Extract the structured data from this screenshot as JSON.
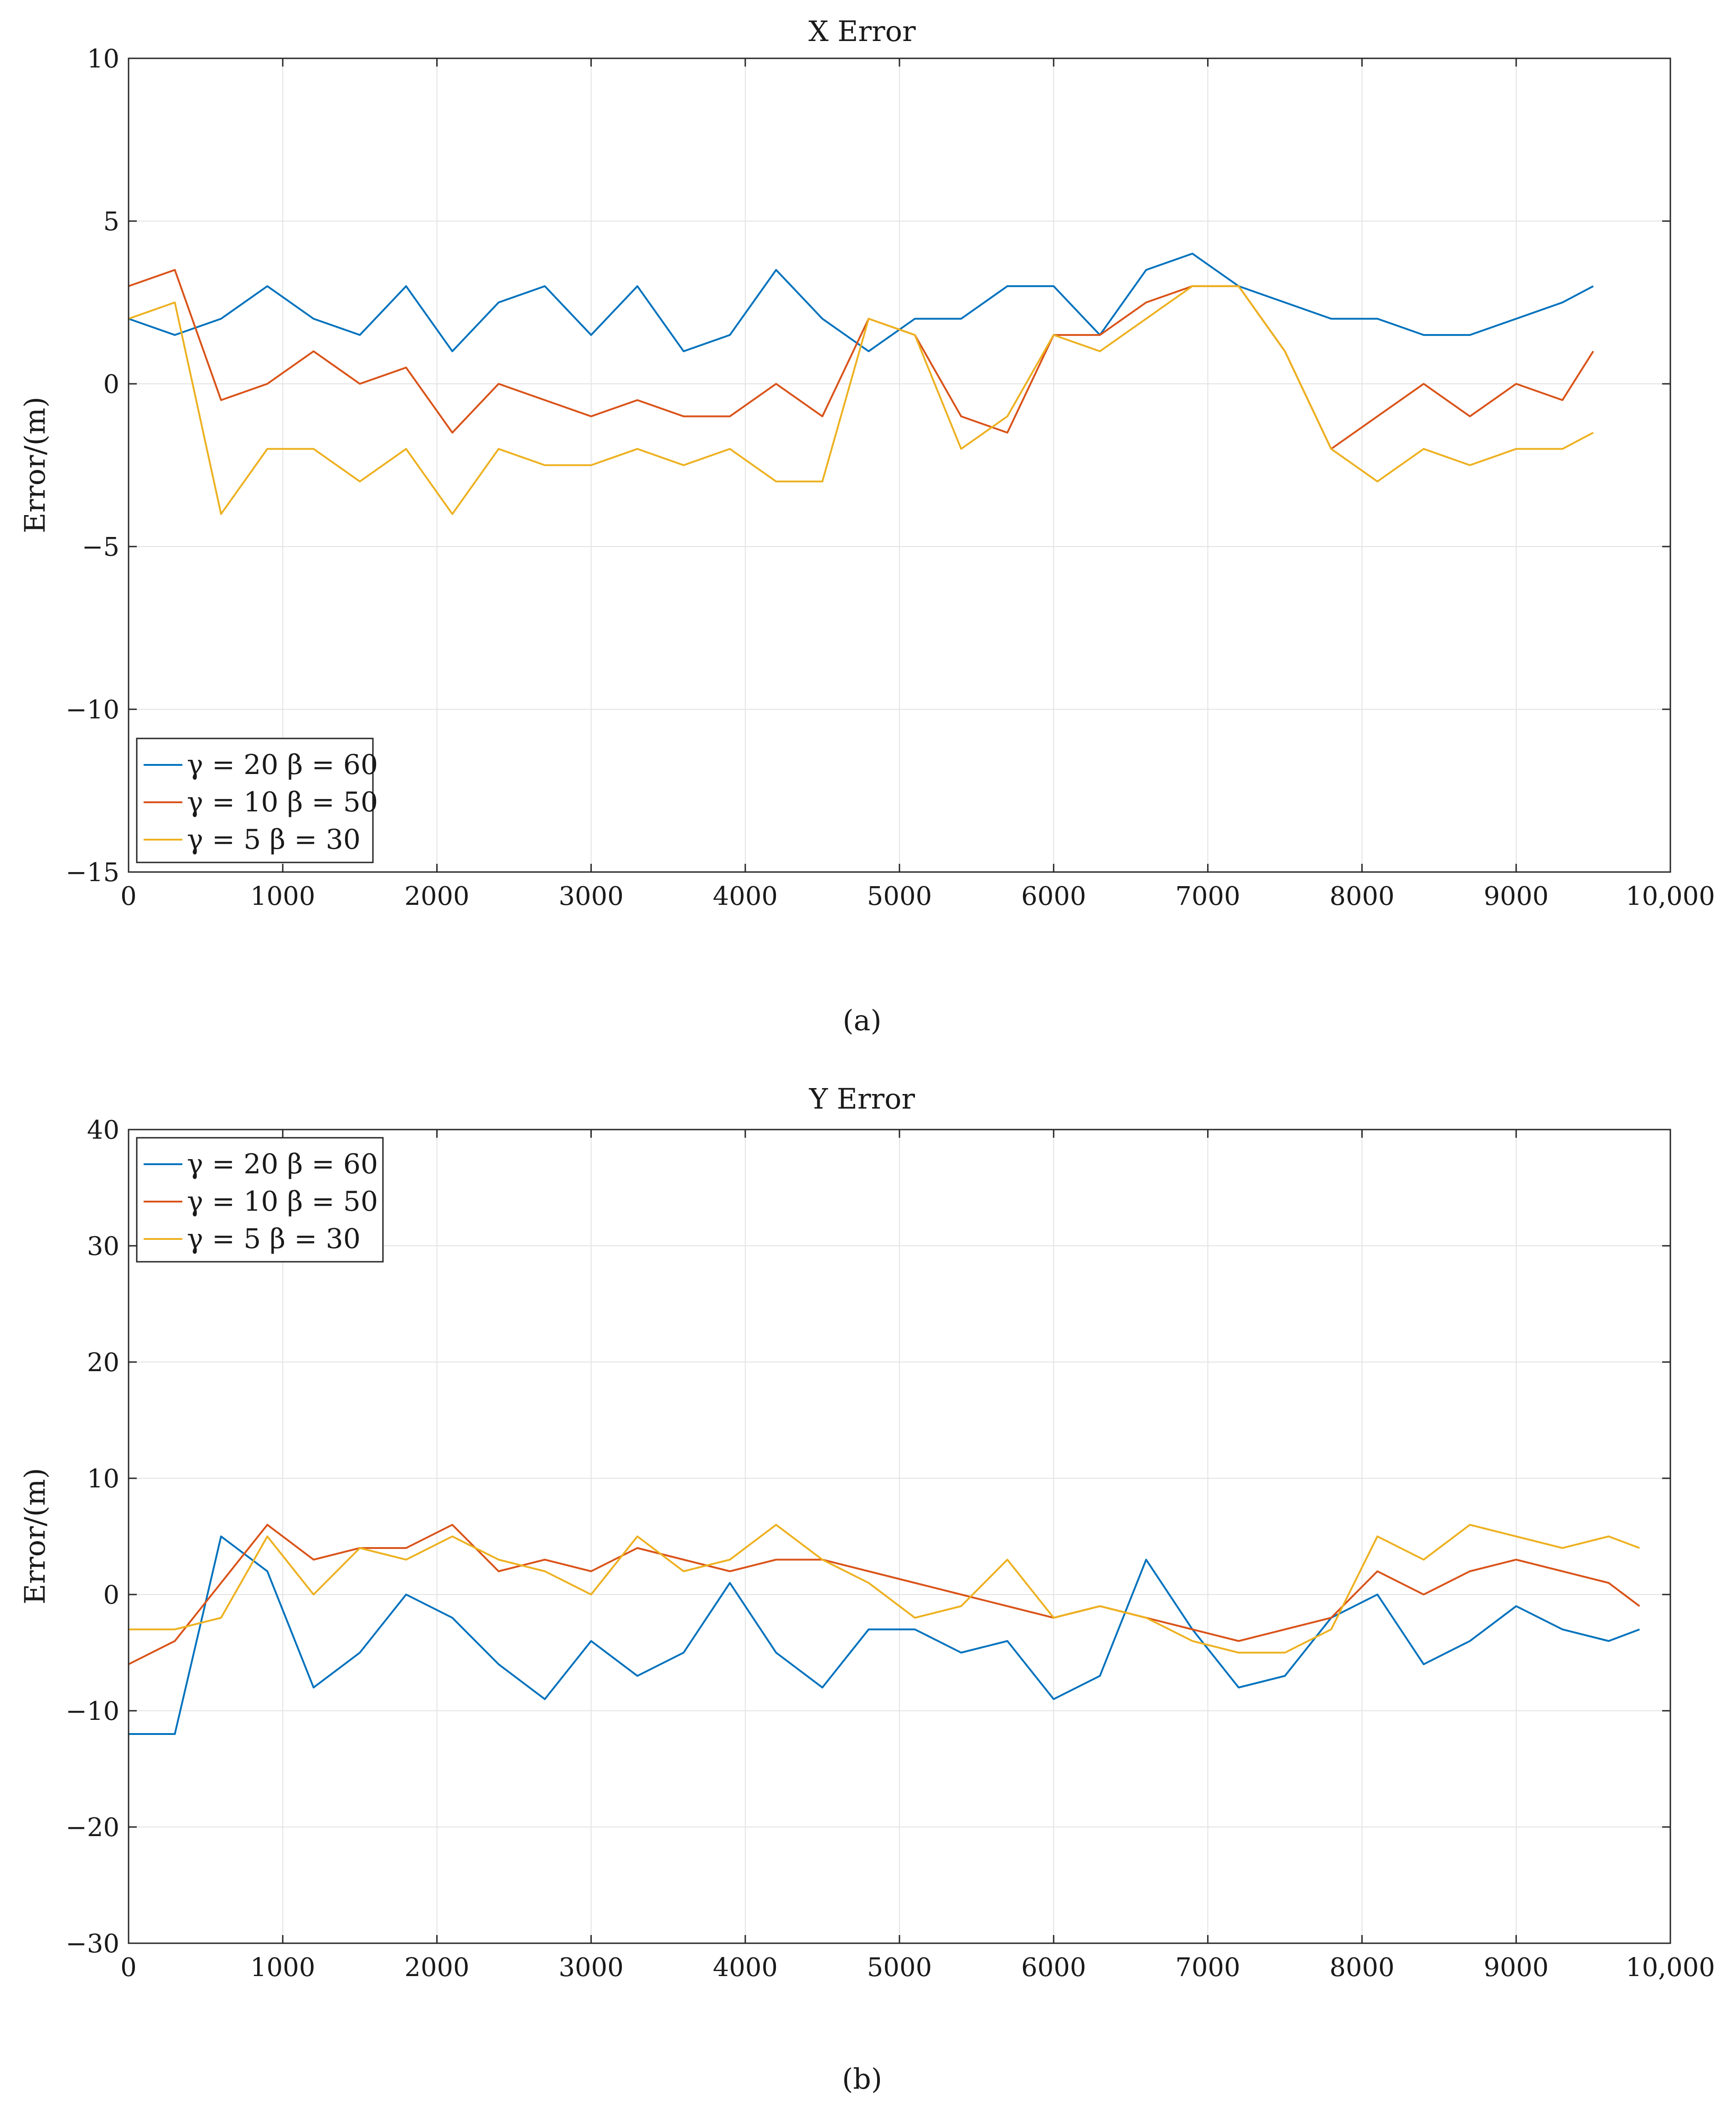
{
  "colors": {
    "series_blue": "#0072BD",
    "series_red": "#D95319",
    "series_yellow": "#EDB120",
    "grid": "#e3e3e3",
    "axis": "#262626"
  },
  "chart_data": [
    {
      "type": "line",
      "title": "X Error",
      "subplot_label": "(a)",
      "xlabel": "",
      "ylabel": "Error/(m)",
      "xlim": [
        0,
        10000
      ],
      "ylim": [
        -15,
        10
      ],
      "xticks": [
        0,
        1000,
        2000,
        3000,
        4000,
        5000,
        6000,
        7000,
        8000,
        9000,
        10000
      ],
      "xtick_labels": [
        "0",
        "1000",
        "2000",
        "3000",
        "4000",
        "5000",
        "6000",
        "7000",
        "8000",
        "9000",
        "10,000"
      ],
      "yticks": [
        10,
        5,
        0,
        -5,
        -10,
        -15
      ],
      "ytick_labels": [
        "10",
        "5",
        "0",
        "−5",
        "−10",
        "−15"
      ],
      "grid": true,
      "legend_position": "bottom-left",
      "series": [
        {
          "name": "γ = 20  β = 60",
          "color": "#0072BD",
          "x": [
            0,
            300,
            600,
            900,
            1200,
            1500,
            1800,
            2100,
            2400,
            2700,
            3000,
            3300,
            3600,
            3900,
            4200,
            4500,
            4800,
            5100,
            5400,
            5700,
            6000,
            6300,
            6600,
            6900,
            7200,
            7500,
            7800,
            8100,
            8400,
            8700,
            9000,
            9300,
            9500
          ],
          "y": [
            2.0,
            1.5,
            2.0,
            3.0,
            2.0,
            1.5,
            3.0,
            1.0,
            2.5,
            3.0,
            1.5,
            3.0,
            1.0,
            1.5,
            3.5,
            2.0,
            1.0,
            2.0,
            2.0,
            3.0,
            3.0,
            1.5,
            3.5,
            4.0,
            3.0,
            2.5,
            2.0,
            2.0,
            1.5,
            1.5,
            2.0,
            2.5,
            3.0
          ]
        },
        {
          "name": "γ = 10  β = 50",
          "color": "#D95319",
          "x": [
            0,
            300,
            600,
            900,
            1200,
            1500,
            1800,
            2100,
            2400,
            2700,
            3000,
            3300,
            3600,
            3900,
            4200,
            4500,
            4800,
            5100,
            5400,
            5700,
            6000,
            6300,
            6600,
            6900,
            7200,
            7500,
            7800,
            8100,
            8400,
            8700,
            9000,
            9300,
            9500
          ],
          "y": [
            3.0,
            3.5,
            -0.5,
            0.0,
            1.0,
            0.0,
            0.5,
            -1.5,
            0.0,
            -0.5,
            -1.0,
            -0.5,
            -1.0,
            -1.0,
            0.0,
            -1.0,
            2.0,
            1.5,
            -1.0,
            -1.5,
            1.5,
            1.5,
            2.5,
            3.0,
            3.0,
            1.0,
            -2.0,
            -1.0,
            0.0,
            -1.0,
            0.0,
            -0.5,
            1.0
          ]
        },
        {
          "name": "γ = 5   β = 30",
          "color": "#EDB120",
          "x": [
            0,
            300,
            600,
            900,
            1200,
            1500,
            1800,
            2100,
            2400,
            2700,
            3000,
            3300,
            3600,
            3900,
            4200,
            4500,
            4800,
            5100,
            5400,
            5700,
            6000,
            6300,
            6600,
            6900,
            7200,
            7500,
            7800,
            8100,
            8400,
            8700,
            9000,
            9300,
            9500
          ],
          "y": [
            2.0,
            2.5,
            -4.0,
            -2.0,
            -2.0,
            -3.0,
            -2.0,
            -4.0,
            -2.0,
            -2.5,
            -2.5,
            -2.0,
            -2.5,
            -2.0,
            -3.0,
            -3.0,
            2.0,
            1.5,
            -2.0,
            -1.0,
            1.5,
            1.0,
            2.0,
            3.0,
            3.0,
            1.0,
            -2.0,
            -3.0,
            -2.0,
            -2.5,
            -2.0,
            -2.0,
            -1.5
          ]
        }
      ]
    },
    {
      "type": "line",
      "title": "Y Error",
      "subplot_label": "(b)",
      "xlabel": "",
      "ylabel": "Error/(m)",
      "xlim": [
        0,
        10000
      ],
      "ylim": [
        -30,
        40
      ],
      "xticks": [
        0,
        1000,
        2000,
        3000,
        4000,
        5000,
        6000,
        7000,
        8000,
        9000,
        10000
      ],
      "xtick_labels": [
        "0",
        "1000",
        "2000",
        "3000",
        "4000",
        "5000",
        "6000",
        "7000",
        "8000",
        "9000",
        "10,000"
      ],
      "yticks": [
        40,
        30,
        20,
        10,
        0,
        -10,
        -20,
        -30
      ],
      "ytick_labels": [
        "40",
        "30",
        "20",
        "10",
        "0",
        "−10",
        "−20",
        "−30"
      ],
      "grid": true,
      "legend_position": "top-left",
      "series": [
        {
          "name": "γ = 20  β  = 60",
          "color": "#0072BD",
          "x": [
            0,
            300,
            600,
            900,
            1200,
            1500,
            1800,
            2100,
            2400,
            2700,
            3000,
            3300,
            3600,
            3900,
            4200,
            4500,
            4800,
            5100,
            5400,
            5700,
            6000,
            6300,
            6600,
            6900,
            7200,
            7500,
            7800,
            8100,
            8400,
            8700,
            9000,
            9300,
            9600,
            9800
          ],
          "y": [
            -12,
            -12,
            5,
            2,
            -8,
            -5,
            0,
            -2,
            -6,
            -9,
            -4,
            -7,
            -5,
            1,
            -5,
            -8,
            -3,
            -3,
            -5,
            -4,
            -9,
            -7,
            3,
            -3,
            -8,
            -7,
            -2,
            0,
            -6,
            -4,
            -1,
            -3,
            -4,
            -3
          ]
        },
        {
          "name": "γ = 10  β = 50",
          "color": "#D95319",
          "x": [
            0,
            300,
            600,
            900,
            1200,
            1500,
            1800,
            2100,
            2400,
            2700,
            3000,
            3300,
            3600,
            3900,
            4200,
            4500,
            4800,
            5100,
            5400,
            5700,
            6000,
            6300,
            6600,
            6900,
            7200,
            7500,
            7800,
            8100,
            8400,
            8700,
            9000,
            9300,
            9600,
            9800
          ],
          "y": [
            -6,
            -4,
            1,
            6,
            3,
            4,
            4,
            6,
            2,
            3,
            2,
            4,
            3,
            2,
            3,
            3,
            2,
            1,
            0,
            -1,
            -2,
            -1,
            -2,
            -3,
            -4,
            -3,
            -2,
            2,
            0,
            2,
            3,
            2,
            1,
            -1
          ]
        },
        {
          "name": "γ =  5   β = 30",
          "color": "#EDB120",
          "x": [
            0,
            300,
            600,
            900,
            1200,
            1500,
            1800,
            2100,
            2400,
            2700,
            3000,
            3300,
            3600,
            3900,
            4200,
            4500,
            4800,
            5100,
            5400,
            5700,
            6000,
            6300,
            6600,
            6900,
            7200,
            7500,
            7800,
            8100,
            8400,
            8700,
            9000,
            9300,
            9600,
            9800
          ],
          "y": [
            -3,
            -3,
            -2,
            5,
            0,
            4,
            3,
            5,
            3,
            2,
            0,
            5,
            2,
            3,
            6,
            3,
            1,
            -2,
            -1,
            3,
            -2,
            -1,
            -2,
            -4,
            -5,
            -5,
            -3,
            5,
            3,
            6,
            5,
            4,
            5,
            4
          ]
        }
      ]
    }
  ]
}
